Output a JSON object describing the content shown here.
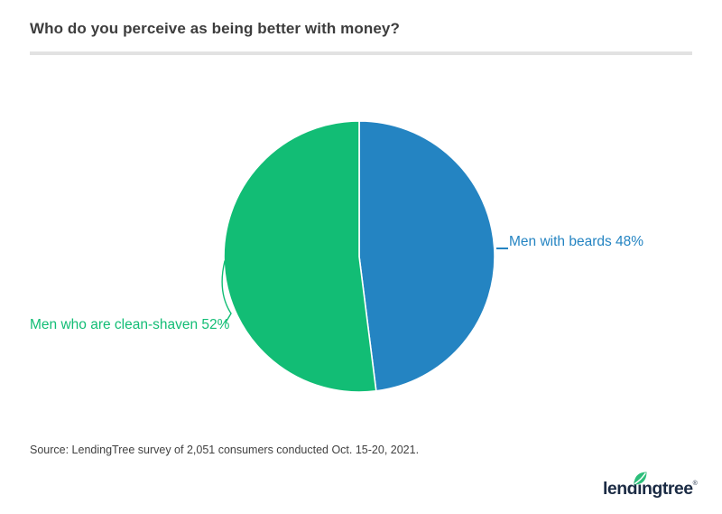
{
  "header": {
    "title": "Who do you perceive as being better with money?"
  },
  "chart_data": {
    "type": "pie",
    "title": "Who do you perceive as being better with money?",
    "categories": [
      "Men with beards",
      "Men who are clean-shaven"
    ],
    "values": [
      48,
      52
    ],
    "unit": "%",
    "labels": [
      "Men with beards 48%",
      "Men who are clean-shaven 52%"
    ],
    "colors": [
      "#2484c2",
      "#12bd75"
    ],
    "slice_border_color": "#ffffff",
    "start_angle_deg": -90,
    "direction": "clockwise",
    "legend_position": "none"
  },
  "footer": {
    "source": "Source: LendingTree survey of 2,051 consumers conducted Oct. 15-20, 2021.",
    "logo": {
      "brand": "lendingtree",
      "display_text": "lendıngtree",
      "registered_mark": "®"
    }
  },
  "colors": {
    "accent_blue": "#2484c2",
    "accent_green": "#12bd75",
    "title_text": "#3d3d3d",
    "source_text": "#414141",
    "divider": "#e2e2e2",
    "logo_navy": "#1b2b44",
    "leaf_green": "#2cbe7a",
    "background": "#ffffff"
  }
}
